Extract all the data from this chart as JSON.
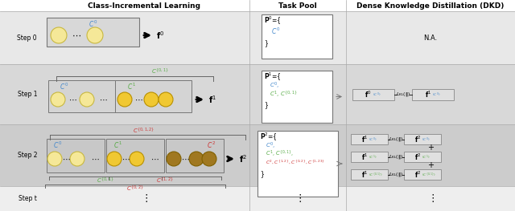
{
  "title_left": "Class-Incremental Learning",
  "title_mid": "Task Pool",
  "title_right": "Dense Knowledge Distillation (DKD)",
  "step_labels": [
    "Step 0",
    "Step 1",
    "Step 2",
    "Step t"
  ],
  "row_tops": [
    0,
    14,
    14,
    80,
    155,
    232,
    263
  ],
  "col_dividers": [
    310,
    430
  ],
  "bg_row0": "#eeeeee",
  "bg_row1": "#d8d8d8",
  "bg_row2": "#c8c8c8",
  "bg_row3": "#f0f0f0",
  "bg_header": "#ffffff",
  "circle_c0": "#f5e898",
  "circle_c1": "#f0c832",
  "circle_c2": "#a07820",
  "circle_edge_c0": "#c8b840",
  "circle_edge_c1": "#b89000",
  "circle_edge_c2": "#806000",
  "box_fill": "#e0e0e0",
  "box_edge": "#888888",
  "tp_fill": "#ffffff",
  "text_blue": "#4488cc",
  "text_green": "#55aa44",
  "text_red": "#cc3333",
  "text_black": "#111111",
  "divider_color": "#aaaaaa"
}
